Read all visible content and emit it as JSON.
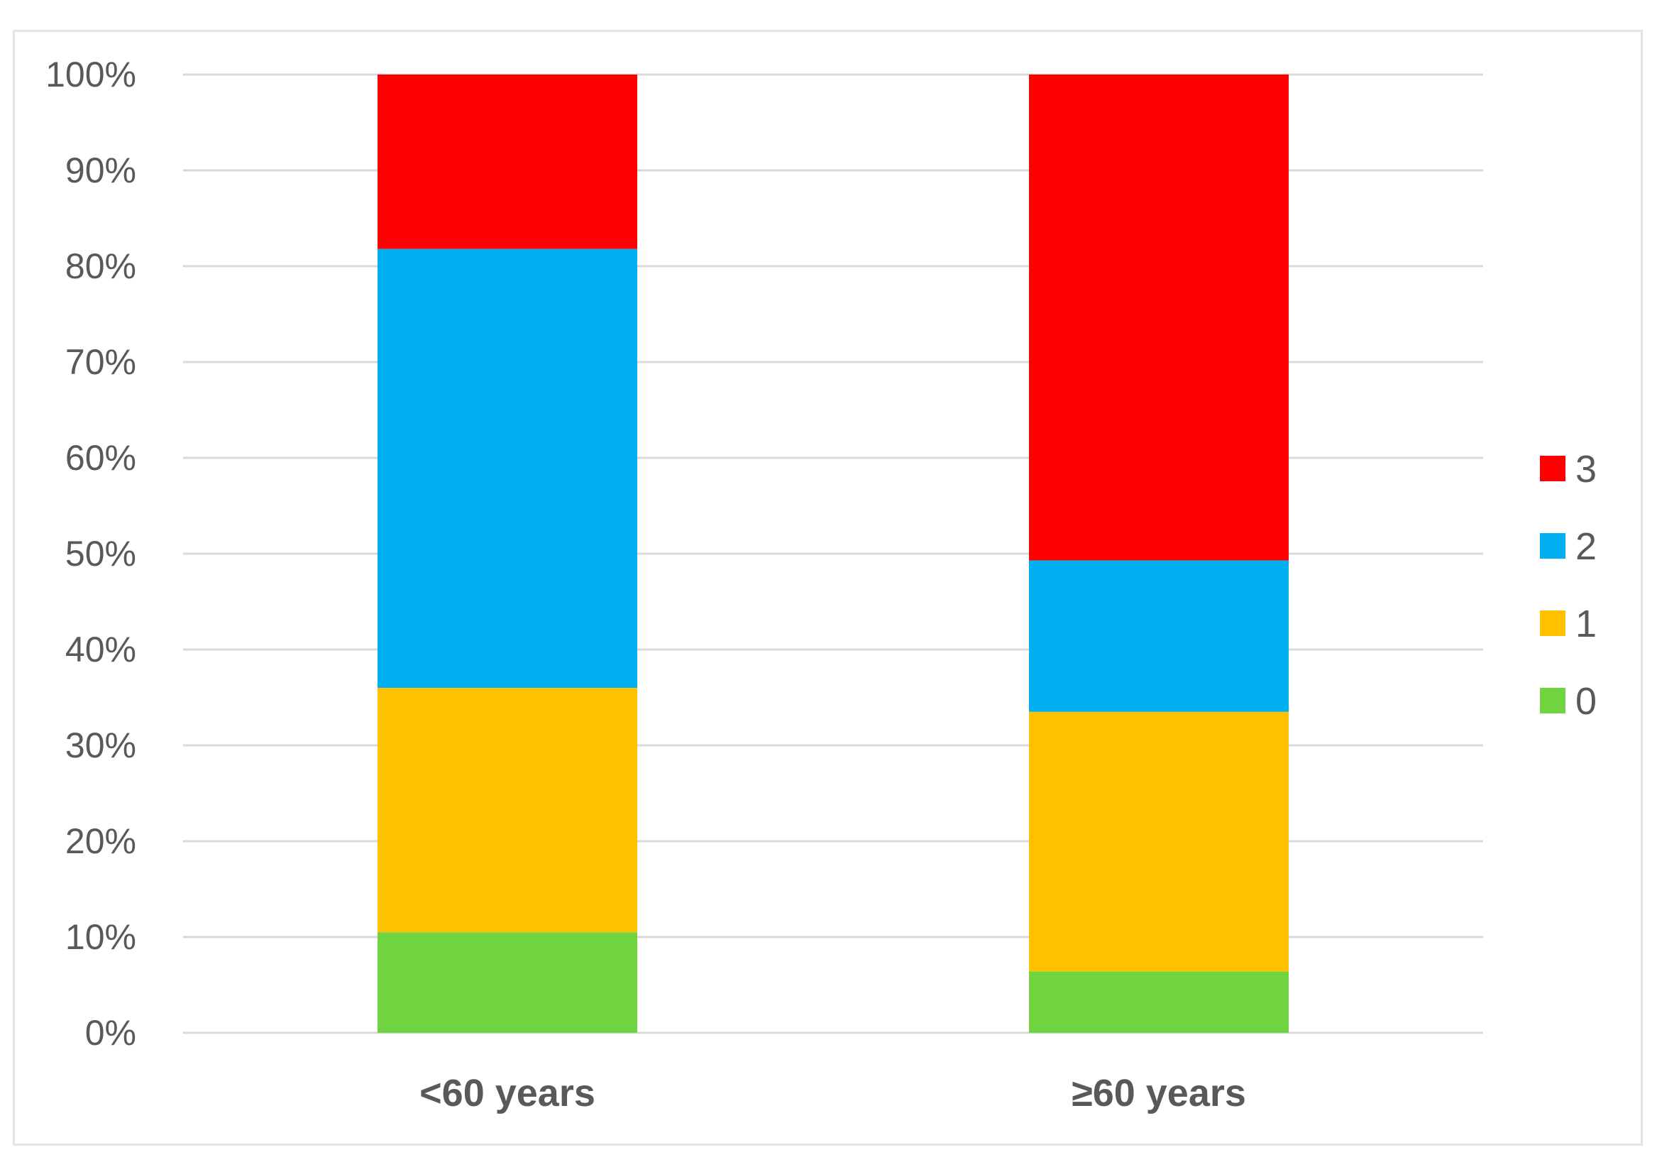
{
  "chart_data": {
    "type": "bar",
    "stacked": true,
    "title": "",
    "xlabel": "",
    "ylabel": "",
    "ylim": [
      0,
      100
    ],
    "y_ticks": [
      "0%",
      "10%",
      "20%",
      "30%",
      "40%",
      "50%",
      "60%",
      "70%",
      "80%",
      "90%",
      "100%"
    ],
    "grid": true,
    "legend_position": "right",
    "categories": [
      "<60 years",
      "≥60 years"
    ],
    "series": [
      {
        "name": "0",
        "color": "#70d340",
        "values": [
          10.5,
          6.4
        ]
      },
      {
        "name": "1",
        "color": "#ffc000",
        "values": [
          25.5,
          27.1
        ]
      },
      {
        "name": "2",
        "color": "#00b0f0",
        "values": [
          45.8,
          15.8
        ]
      },
      {
        "name": "3",
        "color": "#ff0000",
        "values": [
          18.2,
          50.7
        ]
      }
    ],
    "legend_order": [
      "3",
      "2",
      "1",
      "0"
    ],
    "gridline_color": "#d9d9d9"
  }
}
